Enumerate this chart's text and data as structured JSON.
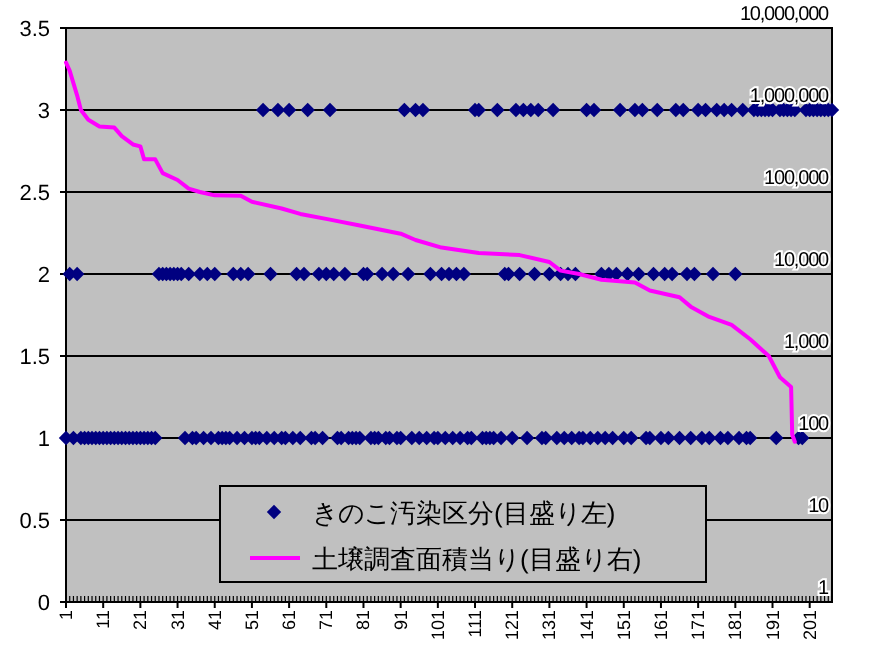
{
  "chart_data": {
    "type": "scatter",
    "xlim": [
      1,
      207
    ],
    "xticks": [
      1,
      11,
      21,
      31,
      41,
      51,
      61,
      71,
      81,
      91,
      101,
      111,
      121,
      131,
      141,
      151,
      161,
      171,
      181,
      191,
      201
    ],
    "ylim": [
      0,
      3.5
    ],
    "yticks": [
      0,
      0.5,
      1,
      1.5,
      2,
      2.5,
      3,
      3.5
    ],
    "y2lim": [
      1,
      10000000
    ],
    "y2ticks": [
      1,
      10,
      100,
      {
        "value": 1000,
        "label": "1,000"
      },
      {
        "value": 10000,
        "label": "10,000"
      },
      {
        "value": 100000,
        "label": "100,000"
      },
      {
        "value": 1000000,
        "label": "1,000,000"
      },
      {
        "value": 10000000,
        "label": "10,000,000"
      }
    ],
    "log": "y2",
    "grid": "y",
    "legend": "bottom",
    "series": [
      {
        "name": "きのこ汚染区分(目盛り左)",
        "marker": "diamond",
        "color": "#000080",
        "x": [
          1,
          2,
          3,
          4,
          5,
          6,
          7,
          8,
          9,
          10,
          11,
          12,
          13,
          14,
          15,
          16,
          17,
          18,
          19,
          20,
          21,
          22,
          23,
          24,
          25,
          26,
          27,
          28,
          29,
          30,
          31,
          32,
          33,
          34,
          35,
          36,
          37,
          38,
          39,
          40,
          41,
          42,
          43,
          44,
          45,
          46,
          47,
          48,
          49,
          50,
          51,
          52,
          53,
          54,
          55,
          56,
          57,
          58,
          59,
          60,
          61,
          62,
          63,
          64,
          65,
          66,
          67,
          68,
          69,
          70,
          71,
          72,
          73,
          74,
          75,
          76,
          77,
          78,
          79,
          80,
          81,
          82,
          83,
          84,
          85,
          86,
          87,
          88,
          89,
          90,
          91,
          92,
          93,
          94,
          95,
          96,
          97,
          98,
          99,
          100,
          101,
          102,
          103,
          104,
          105,
          106,
          107,
          108,
          109,
          110,
          111,
          112,
          113,
          114,
          115,
          116,
          117,
          118,
          119,
          120,
          121,
          122,
          123,
          124,
          125,
          126,
          127,
          128,
          129,
          130,
          131,
          132,
          133,
          134,
          135,
          136,
          137,
          138,
          139,
          140,
          141,
          142,
          143,
          144,
          145,
          146,
          147,
          148,
          149,
          150,
          151,
          152,
          153,
          154,
          155,
          156,
          157,
          158,
          159,
          160,
          161,
          162,
          163,
          164,
          165,
          166,
          167,
          168,
          169,
          170,
          171,
          172,
          173,
          174,
          175,
          176,
          177,
          178,
          179,
          180,
          181,
          182,
          183,
          184,
          185,
          186,
          187,
          188,
          189,
          190,
          191,
          192,
          193,
          194,
          195,
          196,
          197,
          198,
          199,
          200,
          201,
          202,
          203,
          204,
          205,
          206,
          207
        ],
        "values": [
          1,
          2,
          1,
          2,
          1,
          1,
          1,
          1,
          1,
          1,
          1,
          1,
          1,
          1,
          1,
          1,
          1,
          1,
          1,
          1,
          1,
          1,
          1,
          1,
          1,
          2,
          2,
          2,
          2,
          2,
          2,
          2,
          1,
          2,
          1,
          1,
          2,
          1,
          2,
          1,
          2,
          1,
          1,
          1,
          1,
          2,
          1,
          2,
          1,
          2,
          1,
          1,
          1,
          3,
          1,
          2,
          1,
          3,
          1,
          1,
          3,
          1,
          2,
          1,
          2,
          3,
          1,
          1,
          2,
          1,
          2,
          3,
          2,
          1,
          1,
          2,
          1,
          1,
          1,
          1,
          2,
          2,
          1,
          1,
          1,
          2,
          1,
          1,
          2,
          1,
          1,
          3,
          2,
          1,
          3,
          1,
          3,
          1,
          2,
          1,
          1,
          2,
          1,
          2,
          1,
          2,
          1,
          2,
          1,
          1,
          3,
          3,
          1,
          1,
          1,
          1,
          3,
          1,
          2,
          2,
          1,
          3,
          2,
          3,
          1,
          3,
          2,
          3,
          1,
          1,
          2,
          3,
          1,
          2,
          1,
          2,
          1,
          2,
          1,
          1,
          3,
          1,
          3,
          1,
          2,
          1,
          2,
          1,
          2,
          3,
          1,
          2,
          1,
          3,
          2,
          3,
          1,
          1,
          2,
          3,
          1,
          2,
          1,
          2,
          3,
          1,
          3,
          2,
          1,
          2,
          3,
          1,
          3,
          1,
          2,
          3,
          1,
          3,
          1,
          3,
          2,
          1,
          3,
          1,
          1,
          3,
          3,
          3,
          3,
          3,
          3,
          1,
          3,
          3,
          3,
          3,
          3,
          1,
          1,
          3,
          3,
          3,
          3,
          3,
          3,
          3,
          3
        ]
      },
      {
        "name": "土壌調査面積当り(目盛り右)",
        "type": "line",
        "axis": "y2",
        "marker": "none",
        "line_style": "solid",
        "color": "#ff00ff",
        "x": [
          1,
          2,
          4,
          5,
          7,
          10,
          14,
          16,
          19,
          21,
          22,
          25,
          27,
          31,
          34,
          37,
          41,
          48,
          51,
          59,
          64,
          72,
          80,
          91,
          95,
          102,
          112,
          123,
          131,
          134,
          139,
          145,
          154,
          158,
          166,
          169,
          174,
          180,
          185,
          190,
          193,
          196,
          196.3,
          197
        ],
        "values": [
          3800000,
          3000000,
          1500000,
          1000000,
          760000,
          630000,
          610000,
          480000,
          380000,
          360000,
          250000,
          250000,
          170000,
          140000,
          110000,
          100000,
          91000,
          90000,
          76000,
          63000,
          54000,
          46000,
          39000,
          31000,
          26000,
          21000,
          18000,
          17000,
          14000,
          11000,
          10000,
          8500,
          7900,
          6300,
          5200,
          4000,
          3000,
          2400,
          1600,
          1000,
          550,
          420,
          110,
          90
        ]
      }
    ]
  }
}
